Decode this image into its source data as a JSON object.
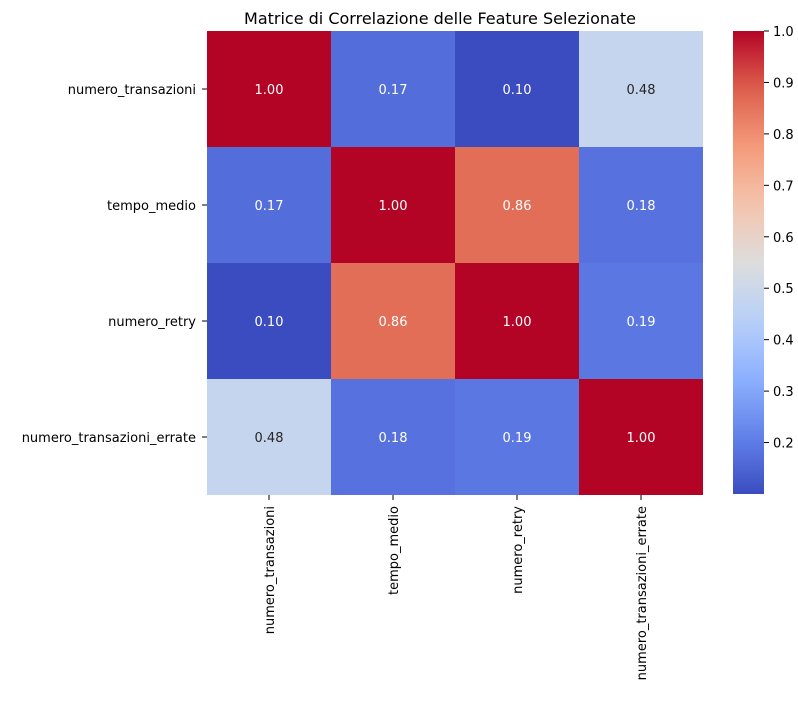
{
  "chart_data": {
    "type": "heatmap",
    "title": "Matrice di Correlazione delle Feature Selezionate",
    "xlabel": "",
    "ylabel": "",
    "row_labels": [
      "numero_transazioni",
      "tempo_medio",
      "numero_retry",
      "numero_transazioni_errate"
    ],
    "col_labels": [
      "numero_transazioni",
      "tempo_medio",
      "numero_retry",
      "numero_transazioni_errate"
    ],
    "values": [
      [
        1.0,
        0.17,
        0.1,
        0.48
      ],
      [
        0.17,
        1.0,
        0.86,
        0.18
      ],
      [
        0.1,
        0.86,
        1.0,
        0.19
      ],
      [
        0.48,
        0.18,
        0.19,
        1.0
      ]
    ],
    "value_format_decimals": 2,
    "colormap": "coolwarm",
    "colorbar": {
      "vmin": 0.1,
      "vmax": 1.0,
      "ticks": [
        0.2,
        0.3,
        0.4,
        0.5,
        0.6,
        0.7,
        0.8,
        0.9,
        1.0
      ],
      "tick_labels": [
        "0.2",
        "0.3",
        "0.4",
        "0.5",
        "0.6",
        "0.7",
        "0.8",
        "0.9",
        "1.0"
      ]
    },
    "grid": false,
    "legend": "colorbar-right"
  }
}
